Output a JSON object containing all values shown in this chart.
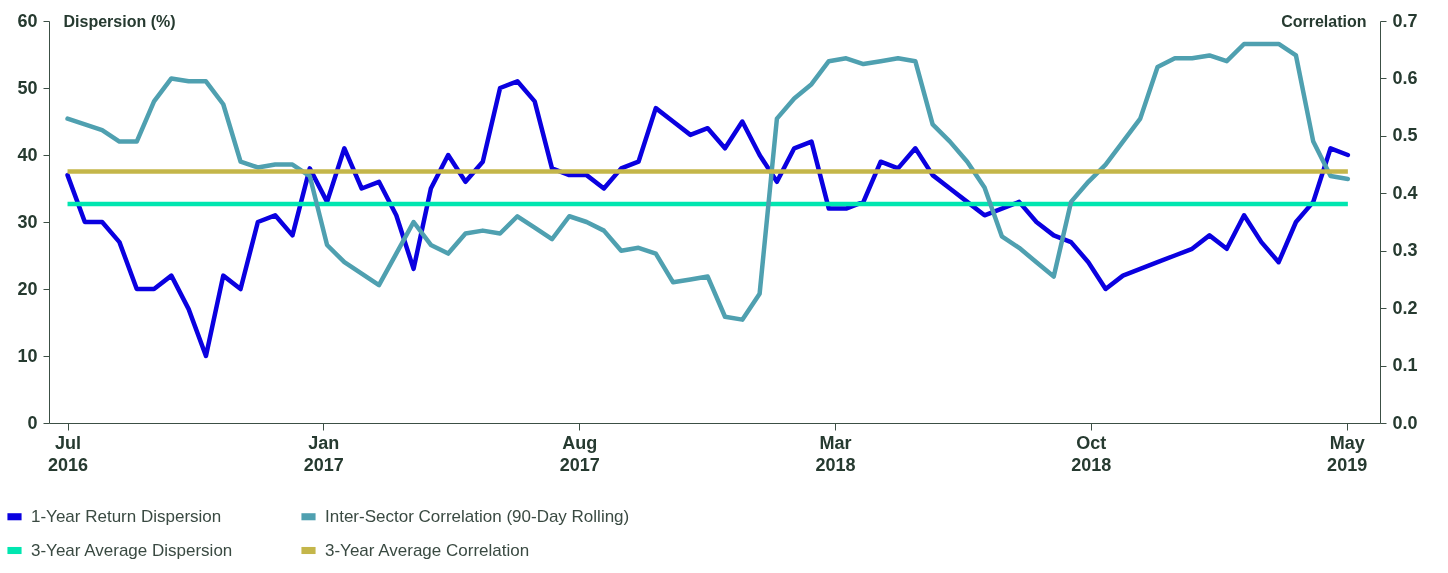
{
  "chart_data": {
    "type": "line",
    "x": [
      "2016-07-01",
      "2016-07-15",
      "2016-07-29",
      "2016-08-12",
      "2016-08-26",
      "2016-09-09",
      "2016-09-23",
      "2016-10-07",
      "2016-10-21",
      "2016-11-04",
      "2016-11-18",
      "2016-12-02",
      "2016-12-16",
      "2016-12-30",
      "2017-01-13",
      "2017-01-27",
      "2017-02-10",
      "2017-02-24",
      "2017-03-10",
      "2017-03-24",
      "2017-04-07",
      "2017-04-21",
      "2017-05-05",
      "2017-05-19",
      "2017-06-02",
      "2017-06-16",
      "2017-06-30",
      "2017-07-14",
      "2017-07-28",
      "2017-08-11",
      "2017-08-25",
      "2017-09-08",
      "2017-09-22",
      "2017-10-06",
      "2017-10-20",
      "2017-11-03",
      "2017-11-17",
      "2017-12-01",
      "2017-12-15",
      "2017-12-29",
      "2018-01-12",
      "2018-01-26",
      "2018-02-09",
      "2018-02-23",
      "2018-03-09",
      "2018-03-23",
      "2018-04-06",
      "2018-04-20",
      "2018-05-04",
      "2018-05-18",
      "2018-06-01",
      "2018-06-15",
      "2018-06-29",
      "2018-07-13",
      "2018-07-27",
      "2018-08-10",
      "2018-08-24",
      "2018-09-07",
      "2018-09-21",
      "2018-10-05",
      "2018-10-19",
      "2018-11-02",
      "2018-11-16",
      "2018-11-30",
      "2018-12-14",
      "2018-12-28",
      "2019-01-11",
      "2019-01-25",
      "2019-02-08",
      "2019-02-22",
      "2019-03-08",
      "2019-03-22",
      "2019-04-05",
      "2019-04-19",
      "2019-05-03"
    ],
    "series": [
      {
        "name": "1-Year Return Dispersion",
        "color": "#0a00e0",
        "values": [
          37,
          30,
          30,
          27,
          20,
          20,
          22,
          17,
          10,
          22,
          20,
          30,
          31,
          28,
          38,
          33,
          41,
          35,
          36,
          31,
          23,
          35,
          40,
          36,
          39,
          50,
          51,
          48,
          38,
          37,
          37,
          35,
          38,
          39,
          47,
          45,
          43,
          44,
          41,
          45,
          40,
          36,
          41,
          42,
          32,
          32,
          33,
          39,
          38,
          41,
          37,
          35,
          33,
          31,
          32,
          33,
          30,
          28,
          27,
          24,
          20,
          22,
          23,
          24,
          25,
          26,
          28,
          26,
          31,
          27,
          24,
          30,
          33,
          41,
          40
        ]
      },
      {
        "name": "Inter-Sector Correlation (90-Day Rolling)",
        "color": "#4fa0b0",
        "axis": "y2",
        "values": [
          0.53,
          0.52,
          0.51,
          0.49,
          0.49,
          0.56,
          0.6,
          0.595,
          0.595,
          0.555,
          0.455,
          0.445,
          0.45,
          0.45,
          0.43,
          0.31,
          0.28,
          0.26,
          0.24,
          0.295,
          0.35,
          0.31,
          0.295,
          0.33,
          0.335,
          0.33,
          0.36,
          0.34,
          0.32,
          0.36,
          0.35,
          0.335,
          0.3,
          0.305,
          0.295,
          0.245,
          0.25,
          0.255,
          0.185,
          0.18,
          0.225,
          0.53,
          0.565,
          0.59,
          0.63,
          0.635,
          0.625,
          0.63,
          0.635,
          0.63,
          0.52,
          0.49,
          0.455,
          0.41,
          0.325,
          0.305,
          0.28,
          0.255,
          0.385,
          0.42,
          0.45,
          0.49,
          0.53,
          0.62,
          0.635,
          0.635,
          0.64,
          0.63,
          0.66,
          0.66,
          0.66,
          0.64,
          0.49,
          0.43,
          0.425
        ]
      }
    ],
    "ref_lines": [
      {
        "axis": "y",
        "value": 32.7,
        "label": "3-Year Average Dispersion",
        "color": "#00e6b0"
      },
      {
        "axis": "y2",
        "value": 0.438,
        "label": "3-Year Average Correlation",
        "color": "#c4b64a"
      }
    ],
    "ylabel": "Dispersion (%)",
    "y2label": "Correlation",
    "xlim": [
      "2016-06-16",
      "2019-05-29"
    ],
    "xticks": [
      {
        "value": "2016-07-01",
        "label": "Jul 2016"
      },
      {
        "value": "2017-01-24",
        "label": "Jan 2017"
      },
      {
        "value": "2017-08-19",
        "label": "Aug 2017"
      },
      {
        "value": "2018-03-14",
        "label": "Mar 2018"
      },
      {
        "value": "2018-10-07",
        "label": "Oct 2018"
      },
      {
        "value": "2019-05-02",
        "label": "May 2019"
      }
    ],
    "ylim": [
      0,
      60
    ],
    "yticks": [
      0,
      10,
      20,
      30,
      40,
      50,
      60
    ],
    "y2lim": [
      0,
      0.7
    ],
    "y2ticks": [
      {
        "value": 0,
        "label": "0.0"
      },
      0.1,
      0.2,
      0.3,
      0.4,
      0.5,
      0.6,
      0.7
    ],
    "legend": "bottom left"
  }
}
